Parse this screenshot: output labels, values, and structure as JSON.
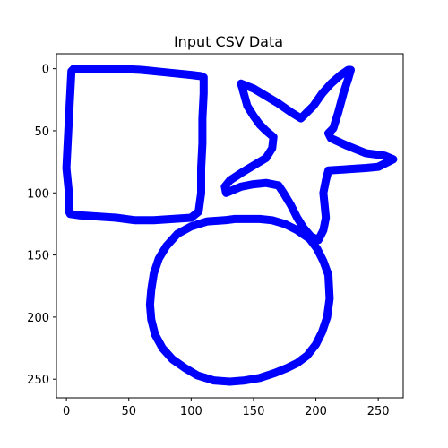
{
  "chart_data": {
    "type": "scatter",
    "title": "Input CSV Data",
    "xlabel": "",
    "ylabel": "",
    "xlim": [
      -8,
      270
    ],
    "ylim": [
      265,
      -12
    ],
    "y_inverted": true,
    "grid": false,
    "legend": "none",
    "marker_color": "#0000ff",
    "xticks": [
      0,
      50,
      100,
      150,
      200,
      250
    ],
    "yticks": [
      0,
      50,
      100,
      150,
      200,
      250
    ],
    "series": [
      {
        "shape": "rectangle",
        "x": [
          4,
          6,
          8,
          20,
          40,
          60,
          80,
          100,
          108,
          110,
          110,
          109,
          109,
          108,
          108,
          106,
          100,
          85,
          70,
          55,
          40,
          25,
          10,
          3,
          2,
          2,
          0,
          1,
          2,
          4
        ],
        "y": [
          2,
          0,
          0,
          0,
          0,
          1,
          3,
          5,
          6,
          7,
          20,
          40,
          60,
          80,
          100,
          115,
          120,
          121,
          122,
          122,
          120,
          119,
          118,
          117,
          115,
          100,
          80,
          60,
          40,
          2
        ]
      },
      {
        "shape": "star",
        "x": [
          140,
          150,
          160,
          170,
          180,
          188,
          198,
          205,
          212,
          220,
          226,
          228,
          226,
          222,
          218,
          214,
          210,
          212,
          225,
          240,
          255,
          262,
          250,
          240,
          225,
          210,
          208,
          206,
          207,
          208,
          206,
          202,
          196,
          190,
          185,
          180,
          174,
          170,
          160,
          150,
          140,
          128,
          127,
          131,
          140,
          150,
          160,
          165,
          166,
          160,
          155,
          150,
          145,
          140
        ],
        "y": [
          12,
          16,
          22,
          28,
          35,
          40,
          30,
          20,
          12,
          5,
          1,
          1,
          8,
          20,
          35,
          48,
          52,
          56,
          62,
          68,
          70,
          73,
          79,
          80,
          81,
          82,
          90,
          100,
          110,
          120,
          130,
          138,
          135,
          128,
          120,
          110,
          100,
          94,
          92,
          93,
          95,
          100,
          95,
          90,
          84,
          78,
          72,
          64,
          55,
          50,
          45,
          38,
          30,
          12
        ]
      },
      {
        "shape": "circle",
        "x": [
          127,
          135,
          145,
          155,
          165,
          175,
          185,
          195,
          201,
          206,
          210,
          211,
          209,
          205,
          200,
          193,
          185,
          177,
          167,
          155,
          143,
          131,
          118,
          105,
          95,
          85,
          77,
          71,
          68,
          67,
          68,
          70,
          74,
          80,
          89,
          100,
          113,
          127
        ],
        "y": [
          122,
          121,
          121,
          121,
          122,
          125,
          130,
          137,
          145,
          155,
          166,
          185,
          200,
          212,
          222,
          231,
          237,
          241,
          245,
          249,
          251,
          252,
          251,
          247,
          241,
          234,
          225,
          214,
          202,
          190,
          178,
          165,
          153,
          143,
          133,
          127,
          123,
          122
        ]
      }
    ]
  }
}
